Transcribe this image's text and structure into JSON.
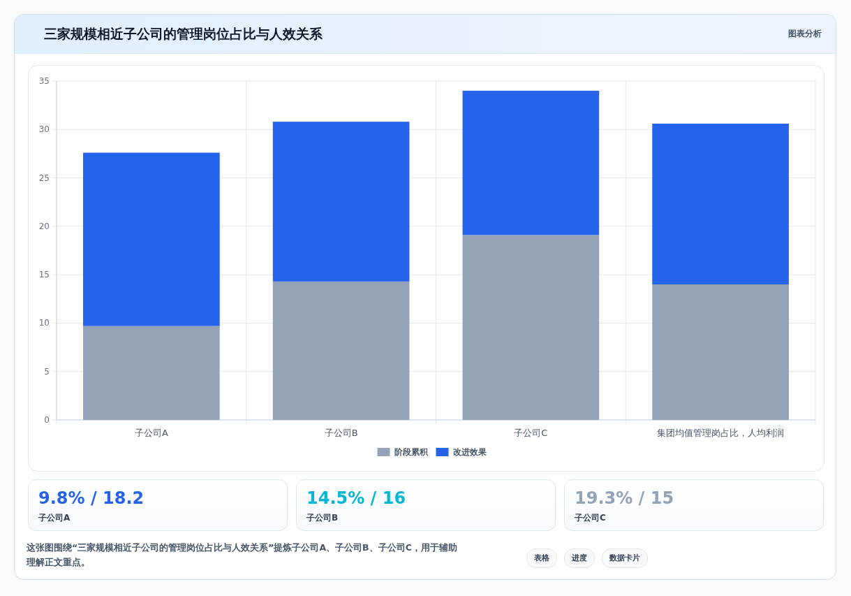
{
  "chart_data": [
    {
      "type": "bar",
      "title": "三家规模相近子公司的管理岗位占比与人效关系",
      "categories": [
        "子公司A",
        "子公司B",
        "子公司C",
        "集团均值管理岗占比，人均利润"
      ],
      "stacked": true,
      "series": [
        {
          "name": "阶段累积",
          "color": "#94a3b8",
          "values": [
            9.7,
            14.3,
            19.1,
            14.0
          ]
        },
        {
          "name": "改进效果",
          "color": "#2563eb",
          "values": [
            17.9,
            16.5,
            14.9,
            16.6
          ]
        }
      ],
      "ylim": [
        0,
        35
      ],
      "yticks": [
        0,
        5,
        10,
        15,
        20,
        25,
        30,
        35
      ],
      "grid": true,
      "legend": "bottom",
      "annotations": [
        "图表分析"
      ]
    },
    {
      "type": "other",
      "categories": [
        "子公司A",
        "子公司B",
        "子公司C"
      ],
      "value_labels": [
        "9.8% / 18.2",
        "14.5% / 16",
        "19.3% / 15"
      ],
      "annotations": [
        "这张图围绕“三家规模相近子公司的管理岗位占比与人效关系”提炼子公司A、子公司B、子公司C，用于辅助理解正文重点。",
        "表格",
        "进度",
        "数据卡片"
      ]
    }
  ]
}
